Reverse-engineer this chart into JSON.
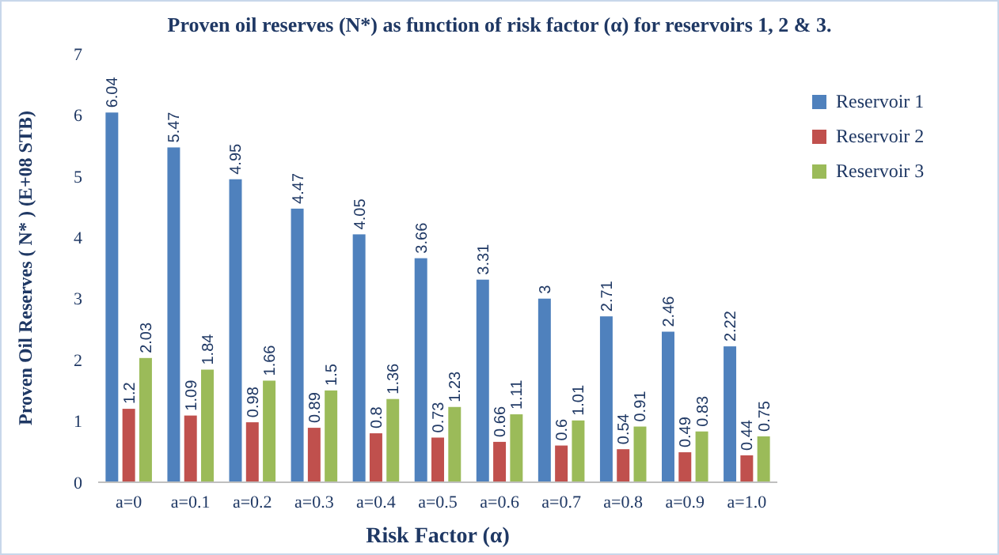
{
  "chart_data": {
    "type": "bar",
    "title": "Proven oil reserves (N*) as function of risk factor (α) for reservoirs 1, 2 & 3.",
    "xlabel": "Risk Factor (α)",
    "ylabel": "Proven Oil Reserves ( N* )  (E+08 STB)",
    "categories": [
      "a=0",
      "a=0.1",
      "a=0.2",
      "a=0.3",
      "a=0.4",
      "a=0.5",
      "a=0.6",
      "a=0.7",
      "a=0.8",
      "a=0.9",
      "a=1.0"
    ],
    "series": [
      {
        "name": "Reservoir 1",
        "color": "#4f81bd",
        "values": [
          6.04,
          5.47,
          4.95,
          4.47,
          4.05,
          3.66,
          3.31,
          3,
          2.71,
          2.46,
          2.22
        ]
      },
      {
        "name": "Reservoir 2",
        "color": "#c0504d",
        "values": [
          1.2,
          1.09,
          0.98,
          0.89,
          0.8,
          0.73,
          0.66,
          0.6,
          0.54,
          0.49,
          0.44
        ]
      },
      {
        "name": "Reservoir 3",
        "color": "#9bbb59",
        "values": [
          2.03,
          1.84,
          1.66,
          1.5,
          1.36,
          1.23,
          1.11,
          1.01,
          0.91,
          0.83,
          0.75
        ]
      }
    ],
    "ylim": [
      0,
      7
    ],
    "yticks": [
      0,
      1,
      2,
      3,
      4,
      5,
      6,
      7
    ],
    "grid": false,
    "legend": "top right",
    "data_labels": true
  }
}
